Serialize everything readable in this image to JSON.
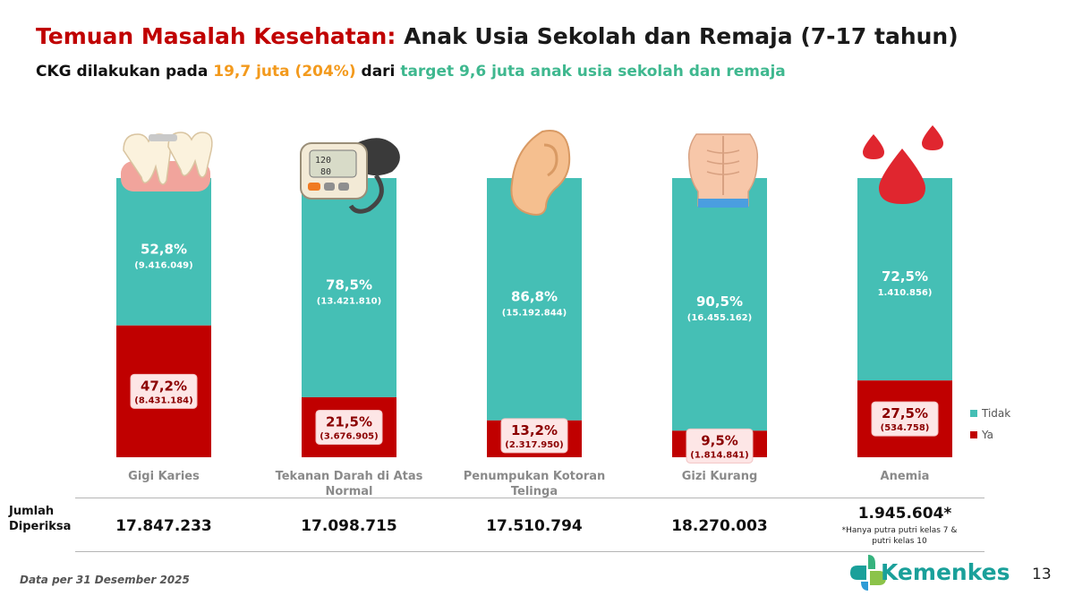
{
  "header": {
    "title_red": "Temuan Masalah Kesehatan:",
    "title_black": "Anak Usia Sekolah dan Remaja (7-17 tahun)",
    "sub_prefix": "CKG dilakukan pada",
    "sub_orange": "19,7 juta (204%)",
    "sub_mid": "dari",
    "sub_green": "target 9,6 juta anak usia sekolah dan remaja"
  },
  "colors": {
    "tidak": "#45bfb5",
    "ya": "#c00000",
    "title_red": "#c00000",
    "orange": "#f39a1d",
    "green": "#3fb88f"
  },
  "chart_data": {
    "type": "bar",
    "stacked": true,
    "percent_stacked": true,
    "categories": [
      "Gigi Karies",
      "Tekanan Darah di Atas Normal",
      "Penumpukan Kotoran Telinga",
      "Gizi Kurang",
      "Anemia"
    ],
    "series": [
      {
        "name": "Ya",
        "values": [
          47.2,
          21.5,
          13.2,
          9.5,
          27.5
        ],
        "pct_labels": [
          "47,2%",
          "21,5%",
          "13,2%",
          "9,5%",
          "27,5%"
        ],
        "count_labels": [
          "(8.431.184)",
          "(3.676.905)",
          "(2.317.950)",
          "(1.814.841)",
          "(534.758)"
        ]
      },
      {
        "name": "Tidak",
        "values": [
          52.8,
          78.5,
          86.8,
          90.5,
          72.5
        ],
        "pct_labels": [
          "52,8%",
          "78,5%",
          "86,8%",
          "90,5%",
          "72,5%"
        ],
        "count_labels": [
          "(9.416.049)",
          "(13.421.810)",
          "(15.192.844)",
          "(16.455.162)",
          "1.410.856)"
        ]
      }
    ],
    "legend": [
      "Tidak",
      "Ya"
    ],
    "legend_position": "right",
    "ylim": [
      0,
      100
    ],
    "grid": false
  },
  "icons": [
    "teeth-icon",
    "blood-pressure-monitor-icon",
    "ear-icon",
    "torso-icon",
    "blood-drop-icon"
  ],
  "table": {
    "row_label_1": "Jumlah",
    "row_label_2": "Diperiksa",
    "totals": [
      "17.847.233",
      "17.098.715",
      "17.510.794",
      "18.270.003",
      "1.945.604*"
    ],
    "note_1": "*Hanya putra putri kelas 7 &",
    "note_2": "putri kelas 10"
  },
  "footer": {
    "data_note": "Data per 31 Desember  2025",
    "brand": "Kemenkes",
    "page_number": "13"
  }
}
